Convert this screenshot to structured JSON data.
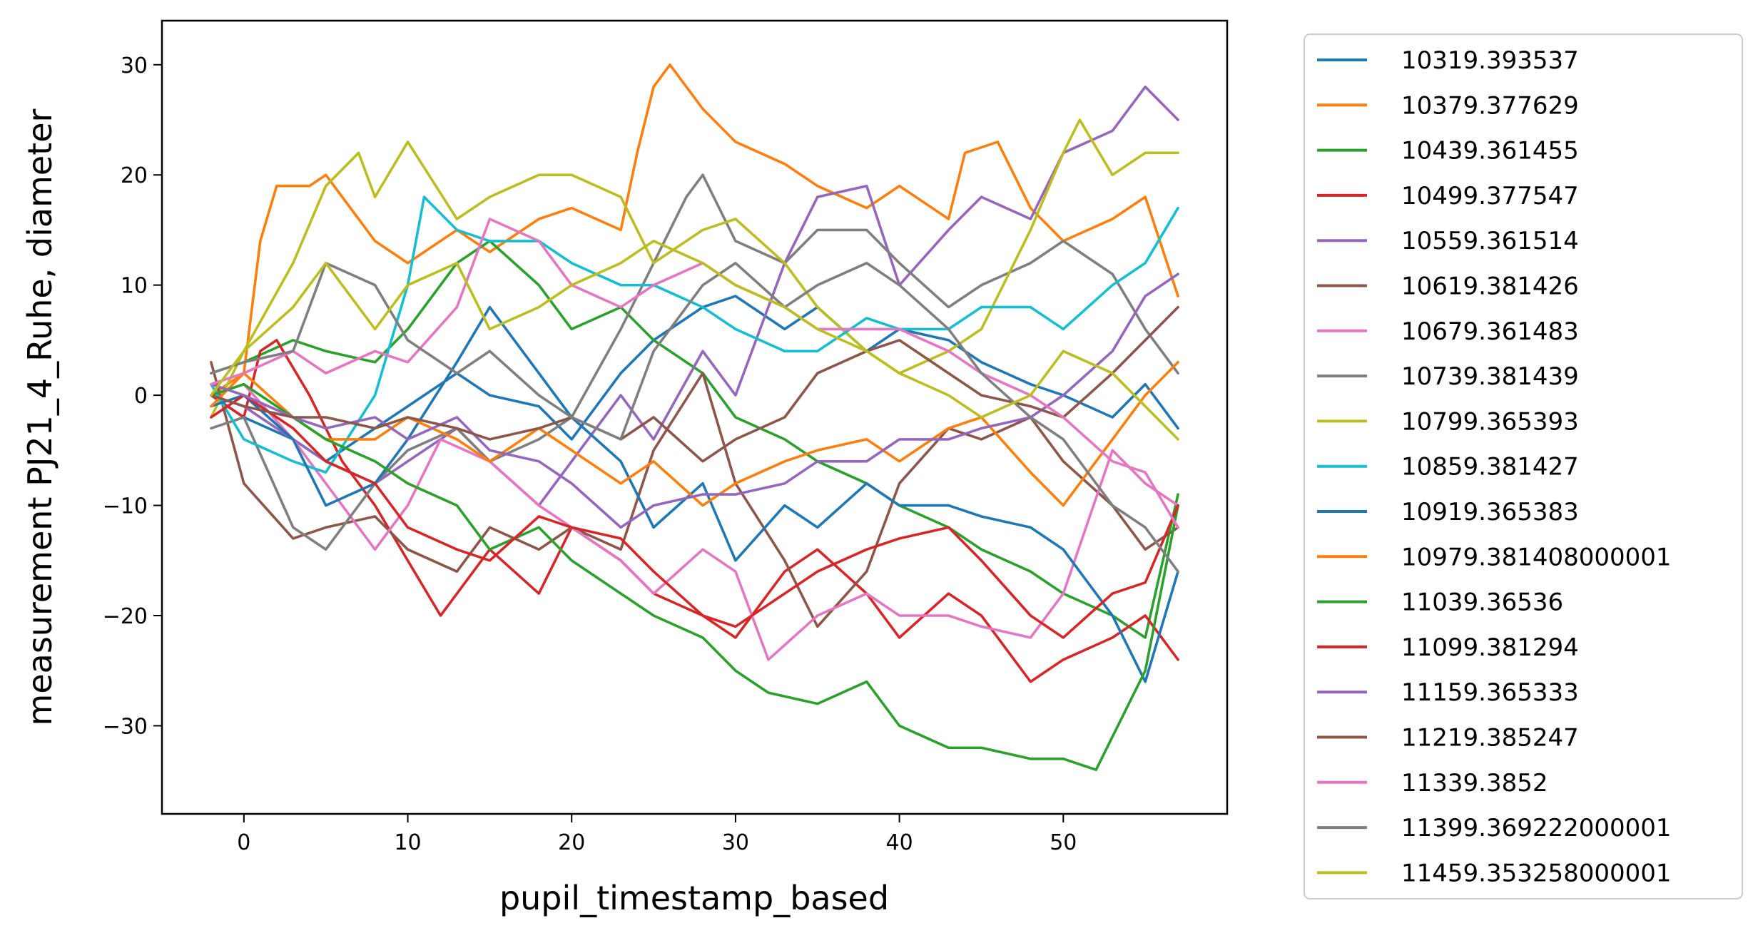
{
  "chart_data": {
    "type": "line",
    "xlabel": "pupil_timestamp_based",
    "ylabel": "measurement PJ21_4_Ruhe, diameter",
    "xlim": [
      -5,
      60
    ],
    "ylim": [
      -38,
      34
    ],
    "xticks": [
      0,
      10,
      20,
      30,
      40,
      50
    ],
    "yticks": [
      -30,
      -20,
      -10,
      0,
      10,
      20,
      30
    ],
    "grid": false,
    "legend_position": "outside-right",
    "series": [
      {
        "name": "10319.393537",
        "color": "#1f77b4",
        "x": [
          -2,
          0,
          3,
          5,
          8,
          10,
          13,
          15,
          18,
          20,
          23,
          25,
          28,
          30,
          33,
          35,
          38,
          40,
          43,
          45,
          48,
          50,
          53,
          55,
          57
        ],
        "y": [
          0,
          -2,
          -4,
          -6,
          -3,
          -1,
          2,
          0,
          -1,
          -4,
          2,
          5,
          8,
          9,
          6,
          8,
          4,
          6,
          5,
          3,
          1,
          0,
          -2,
          1,
          -3
        ]
      },
      {
        "name": "10379.377629",
        "color": "#ff7f0e",
        "x": [
          -2,
          0,
          1,
          2,
          4,
          5,
          8,
          10,
          13,
          15,
          18,
          20,
          23,
          24,
          25,
          26,
          28,
          30,
          33,
          35,
          38,
          40,
          43,
          44,
          46,
          48,
          50,
          53,
          55,
          57
        ],
        "y": [
          0,
          2,
          14,
          19,
          19,
          20,
          14,
          12,
          15,
          13,
          16,
          17,
          15,
          22,
          28,
          30,
          26,
          23,
          21,
          19,
          17,
          19,
          16,
          22,
          23,
          17,
          14,
          16,
          18,
          9
        ]
      },
      {
        "name": "10439.361455",
        "color": "#2ca02c",
        "x": [
          -2,
          0,
          3,
          5,
          8,
          10,
          13,
          15,
          18,
          20,
          23,
          25,
          28,
          30,
          33,
          35,
          38,
          40,
          43,
          45,
          48,
          50,
          53,
          55,
          57
        ],
        "y": [
          2,
          3,
          5,
          4,
          3,
          6,
          12,
          14,
          10,
          6,
          8,
          5,
          2,
          -2,
          -4,
          -6,
          -8,
          -10,
          -12,
          -14,
          -16,
          -18,
          -20,
          -22,
          -9
        ]
      },
      {
        "name": "10499.377547",
        "color": "#d62728",
        "x": [
          -2,
          0,
          1,
          2,
          4,
          6,
          8,
          10,
          12,
          15,
          18,
          20,
          23,
          25,
          28,
          30,
          33,
          35,
          38,
          40,
          43,
          45,
          48,
          50,
          53,
          55,
          57
        ],
        "y": [
          0,
          -2,
          4,
          5,
          0,
          -6,
          -10,
          -15,
          -20,
          -14,
          -18,
          -12,
          -15,
          -18,
          -20,
          -22,
          -16,
          -14,
          -18,
          -22,
          -18,
          -20,
          -26,
          -24,
          -22,
          -20,
          -24
        ]
      },
      {
        "name": "10559.361514",
        "color": "#9467bd",
        "x": [
          -2,
          0,
          3,
          5,
          8,
          10,
          13,
          15,
          18,
          20,
          23,
          25,
          28,
          30,
          33,
          35,
          38,
          40,
          43,
          45,
          48,
          50,
          53,
          55,
          57
        ],
        "y": [
          0,
          -1,
          -4,
          -6,
          -8,
          -6,
          -3,
          -6,
          -10,
          -6,
          0,
          -4,
          4,
          0,
          12,
          18,
          19,
          10,
          15,
          18,
          16,
          22,
          24,
          28,
          25
        ]
      },
      {
        "name": "10619.381426",
        "color": "#8c564b",
        "x": [
          -2,
          0,
          3,
          5,
          8,
          10,
          13,
          15,
          18,
          20,
          23,
          25,
          28,
          30,
          33,
          35,
          38,
          40,
          43,
          45,
          48,
          50,
          53,
          55,
          57
        ],
        "y": [
          3,
          -8,
          -13,
          -12,
          -11,
          -14,
          -16,
          -12,
          -14,
          -12,
          -14,
          -5,
          2,
          -8,
          -15,
          -21,
          -16,
          -8,
          -3,
          -4,
          -2,
          -6,
          -10,
          -14,
          -12
        ]
      },
      {
        "name": "10679.361483",
        "color": "#e377c2",
        "x": [
          -2,
          0,
          3,
          5,
          8,
          10,
          12,
          15,
          18,
          20,
          23,
          25,
          28,
          30,
          32,
          35,
          38,
          40,
          43,
          45,
          48,
          50,
          53,
          55,
          57
        ],
        "y": [
          0,
          1,
          -4,
          -8,
          -14,
          -10,
          -4,
          -6,
          -10,
          -12,
          -15,
          -18,
          -14,
          -16,
          -24,
          -20,
          -18,
          -20,
          -20,
          -21,
          -22,
          -18,
          -5,
          -8,
          -10
        ]
      },
      {
        "name": "10739.381439",
        "color": "#7f7f7f",
        "x": [
          -2,
          0,
          3,
          5,
          8,
          10,
          13,
          15,
          18,
          20,
          23,
          25,
          27,
          28,
          30,
          33,
          35,
          38,
          40,
          43,
          45,
          48,
          50,
          53,
          55,
          57
        ],
        "y": [
          -3,
          -2,
          -12,
          -14,
          -8,
          -5,
          -3,
          -6,
          -4,
          -2,
          6,
          12,
          18,
          20,
          14,
          12,
          15,
          15,
          12,
          8,
          10,
          12,
          14,
          11,
          6,
          2
        ]
      },
      {
        "name": "10799.365393",
        "color": "#bcbd22",
        "x": [
          -2,
          0,
          3,
          5,
          7,
          8,
          10,
          13,
          15,
          18,
          20,
          23,
          25,
          28,
          30,
          33,
          35,
          38,
          40,
          43,
          45,
          48,
          50,
          51,
          53,
          55,
          57
        ],
        "y": [
          -2,
          4,
          12,
          19,
          22,
          18,
          23,
          16,
          18,
          20,
          20,
          18,
          12,
          15,
          16,
          12,
          8,
          4,
          2,
          4,
          6,
          15,
          22,
          25,
          20,
          22,
          22
        ]
      },
      {
        "name": "10859.381427",
        "color": "#17becf",
        "x": [
          -2,
          0,
          3,
          5,
          8,
          10,
          11,
          13,
          15,
          18,
          20,
          23,
          25,
          28,
          30,
          33,
          35,
          38,
          40,
          43,
          45,
          48,
          50,
          53,
          55,
          57
        ],
        "y": [
          1,
          -4,
          -6,
          -7,
          0,
          10,
          18,
          15,
          14,
          14,
          12,
          10,
          10,
          8,
          6,
          4,
          4,
          7,
          6,
          6,
          8,
          8,
          6,
          10,
          12,
          17
        ]
      },
      {
        "name": "10919.365383",
        "color": "#1f77b4",
        "x": [
          -2,
          0,
          3,
          5,
          8,
          10,
          13,
          15,
          18,
          20,
          23,
          25,
          28,
          30,
          33,
          35,
          38,
          40,
          43,
          45,
          48,
          50,
          53,
          55,
          57
        ],
        "y": [
          -1,
          0,
          -4,
          -10,
          -8,
          -4,
          3,
          8,
          2,
          -2,
          -6,
          -12,
          -8,
          -15,
          -10,
          -12,
          -8,
          -10,
          -10,
          -11,
          -12,
          -14,
          -20,
          -26,
          -16
        ]
      },
      {
        "name": "10979.381408000001",
        "color": "#ff7f0e",
        "x": [
          -2,
          0,
          3,
          5,
          8,
          10,
          13,
          15,
          18,
          20,
          23,
          25,
          28,
          30,
          33,
          35,
          38,
          40,
          43,
          45,
          48,
          50,
          53,
          55,
          57
        ],
        "y": [
          -1,
          2,
          -2,
          -4,
          -4,
          -2,
          -4,
          -6,
          -3,
          -5,
          -8,
          -6,
          -10,
          -8,
          -6,
          -5,
          -4,
          -6,
          -3,
          -2,
          -7,
          -10,
          -4,
          0,
          3
        ]
      },
      {
        "name": "11039.36536",
        "color": "#2ca02c",
        "x": [
          -2,
          0,
          3,
          5,
          8,
          10,
          13,
          15,
          18,
          20,
          23,
          25,
          28,
          30,
          32,
          35,
          38,
          40,
          43,
          45,
          48,
          50,
          52,
          55,
          57
        ],
        "y": [
          0,
          1,
          -2,
          -4,
          -6,
          -8,
          -10,
          -14,
          -12,
          -15,
          -18,
          -20,
          -22,
          -25,
          -27,
          -28,
          -26,
          -30,
          -32,
          -32,
          -33,
          -33,
          -34,
          -25,
          -10
        ]
      },
      {
        "name": "11099.381294",
        "color": "#d62728",
        "x": [
          -2,
          0,
          3,
          5,
          8,
          10,
          13,
          15,
          18,
          20,
          23,
          25,
          28,
          30,
          33,
          35,
          38,
          40,
          43,
          45,
          48,
          50,
          53,
          55,
          57
        ],
        "y": [
          -2,
          0,
          -3,
          -6,
          -8,
          -12,
          -14,
          -15,
          -11,
          -12,
          -13,
          -16,
          -20,
          -21,
          -18,
          -16,
          -14,
          -13,
          -12,
          -15,
          -20,
          -22,
          -18,
          -17,
          -10
        ]
      },
      {
        "name": "11159.365333",
        "color": "#9467bd",
        "x": [
          -2,
          0,
          3,
          5,
          8,
          10,
          13,
          15,
          18,
          20,
          23,
          25,
          28,
          30,
          33,
          35,
          38,
          40,
          43,
          45,
          48,
          50,
          53,
          55,
          57
        ],
        "y": [
          1,
          0,
          -2,
          -3,
          -2,
          -4,
          -2,
          -5,
          -6,
          -8,
          -12,
          -10,
          -9,
          -9,
          -8,
          -6,
          -6,
          -4,
          -4,
          -3,
          -2,
          0,
          4,
          9,
          11
        ]
      },
      {
        "name": "11219.385247",
        "color": "#8c564b",
        "x": [
          -2,
          0,
          3,
          5,
          8,
          10,
          13,
          15,
          18,
          20,
          23,
          25,
          28,
          30,
          33,
          35,
          38,
          40,
          43,
          45,
          48,
          50,
          53,
          55,
          57
        ],
        "y": [
          0,
          -1,
          -2,
          -2,
          -3,
          -2,
          -3,
          -4,
          -3,
          -2,
          -4,
          -2,
          -6,
          -4,
          -2,
          2,
          4,
          5,
          2,
          0,
          -1,
          -2,
          2,
          5,
          8
        ]
      },
      {
        "name": "11339.3852",
        "color": "#e377c2",
        "x": [
          -2,
          0,
          3,
          5,
          8,
          10,
          13,
          15,
          18,
          20,
          23,
          25,
          28,
          30,
          33,
          35,
          38,
          40,
          43,
          45,
          48,
          50,
          53,
          55,
          57
        ],
        "y": [
          1,
          2,
          4,
          2,
          4,
          3,
          8,
          16,
          14,
          10,
          8,
          10,
          12,
          10,
          8,
          6,
          6,
          6,
          4,
          2,
          0,
          -2,
          -6,
          -7,
          -12
        ]
      },
      {
        "name": "11399.369222000001",
        "color": "#7f7f7f",
        "x": [
          -2,
          0,
          3,
          5,
          8,
          10,
          13,
          15,
          18,
          20,
          23,
          25,
          28,
          30,
          33,
          35,
          38,
          40,
          43,
          45,
          48,
          50,
          53,
          55,
          57
        ],
        "y": [
          2,
          3,
          4,
          12,
          10,
          5,
          2,
          4,
          0,
          -2,
          -4,
          4,
          10,
          12,
          8,
          10,
          12,
          10,
          6,
          2,
          -2,
          -4,
          -10,
          -12,
          -16
        ]
      },
      {
        "name": "11459.353258000001",
        "color": "#bcbd22",
        "x": [
          -2,
          0,
          3,
          5,
          8,
          10,
          13,
          15,
          18,
          20,
          23,
          25,
          28,
          30,
          33,
          35,
          38,
          40,
          43,
          45,
          48,
          50,
          53,
          55,
          57
        ],
        "y": [
          0,
          4,
          8,
          12,
          6,
          10,
          12,
          6,
          8,
          10,
          12,
          14,
          12,
          10,
          8,
          6,
          4,
          2,
          0,
          -2,
          0,
          4,
          2,
          -1,
          -4
        ]
      }
    ]
  }
}
